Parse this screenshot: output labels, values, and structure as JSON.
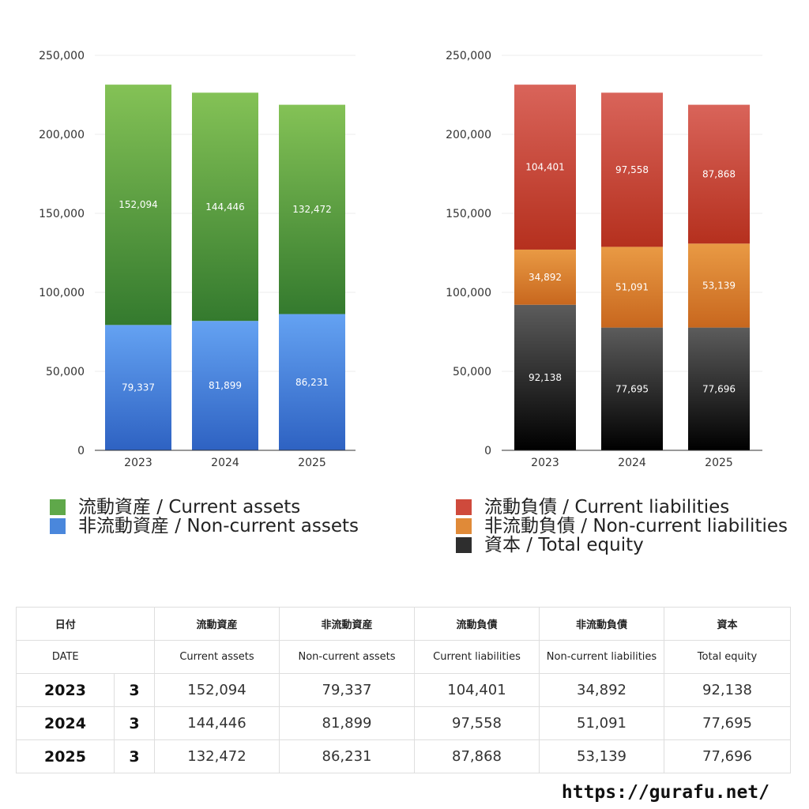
{
  "chart_data": [
    {
      "type": "bar",
      "stacked": true,
      "categories": [
        "2023",
        "2024",
        "2025"
      ],
      "ylim": [
        0,
        250000
      ],
      "yticks": [
        "0",
        "50,000",
        "100,000",
        "150,000",
        "200,000",
        "250,000"
      ],
      "grid": true,
      "legend_position": "bottom",
      "series": [
        {
          "name": "非流動資産 / Non-current assets",
          "values": [
            79337,
            81899,
            86231
          ],
          "labels": [
            "79,337",
            "81,899",
            "86,231"
          ],
          "color_top": "#64a2f2",
          "color_bottom": "#2e62c2"
        },
        {
          "name": "流動資産 / Current assets",
          "values": [
            152094,
            144446,
            132472
          ],
          "labels": [
            "152,094",
            "144,446",
            "132,472"
          ],
          "color_top": "#84c256",
          "color_bottom": "#347a2e"
        }
      ]
    },
    {
      "type": "bar",
      "stacked": true,
      "categories": [
        "2023",
        "2024",
        "2025"
      ],
      "ylim": [
        0,
        250000
      ],
      "yticks": [
        "0",
        "50,000",
        "100,000",
        "150,000",
        "200,000",
        "250,000"
      ],
      "grid": true,
      "legend_position": "bottom",
      "series": [
        {
          "name": "資本 / Total equity",
          "values": [
            92138,
            77695,
            77696
          ],
          "labels": [
            "92,138",
            "77,695",
            "77,696"
          ],
          "color_top": "#5c5c5c",
          "color_bottom": "#000000"
        },
        {
          "name": "非流動負債 / Non-current liabilities",
          "values": [
            34892,
            51091,
            53139
          ],
          "labels": [
            "34,892",
            "51,091",
            "53,139"
          ],
          "color_top": "#e99a44",
          "color_bottom": "#c8671e"
        },
        {
          "name": "流動負債 / Current liabilities",
          "values": [
            104401,
            97558,
            87868
          ],
          "labels": [
            "104,401",
            "97,558",
            "87,868"
          ],
          "color_top": "#d9645a",
          "color_bottom": "#b5301e"
        }
      ]
    }
  ],
  "legend_left": [
    {
      "label": "流動資産 / Current assets",
      "color": "#5fa84a"
    },
    {
      "label": "非流動資産 / Non-current assets",
      "color": "#4a87dc"
    }
  ],
  "legend_right": [
    {
      "label": "流動負債 / Current liabilities",
      "color": "#cf4a3c"
    },
    {
      "label": "非流動負債 / Non-current liabilities",
      "color": "#e08a38"
    },
    {
      "label": "資本 / Total equity",
      "color": "#2e2e2e"
    }
  ],
  "table": {
    "header_jp": {
      "date": "日付",
      "c1": "流動資産",
      "c2": "非流動資産",
      "c3": "流動負債",
      "c4": "非流動負債",
      "c5": "資本"
    },
    "header_en": {
      "date": "DATE",
      "c1": "Current assets",
      "c2": "Non-current assets",
      "c3": "Current liabilities",
      "c4": "Non-current liabilities",
      "c5": "Total equity"
    },
    "rows": [
      {
        "year": "2023",
        "month": "3",
        "c1": "152,094",
        "c2": "79,337",
        "c3": "104,401",
        "c4": "34,892",
        "c5": "92,138"
      },
      {
        "year": "2024",
        "month": "3",
        "c1": "144,446",
        "c2": "81,899",
        "c3": "97,558",
        "c4": "51,091",
        "c5": "77,695"
      },
      {
        "year": "2025",
        "month": "3",
        "c1": "132,472",
        "c2": "86,231",
        "c3": "87,868",
        "c4": "53,139",
        "c5": "77,696"
      }
    ]
  },
  "footer": {
    "url": "https://gurafu.net/"
  }
}
